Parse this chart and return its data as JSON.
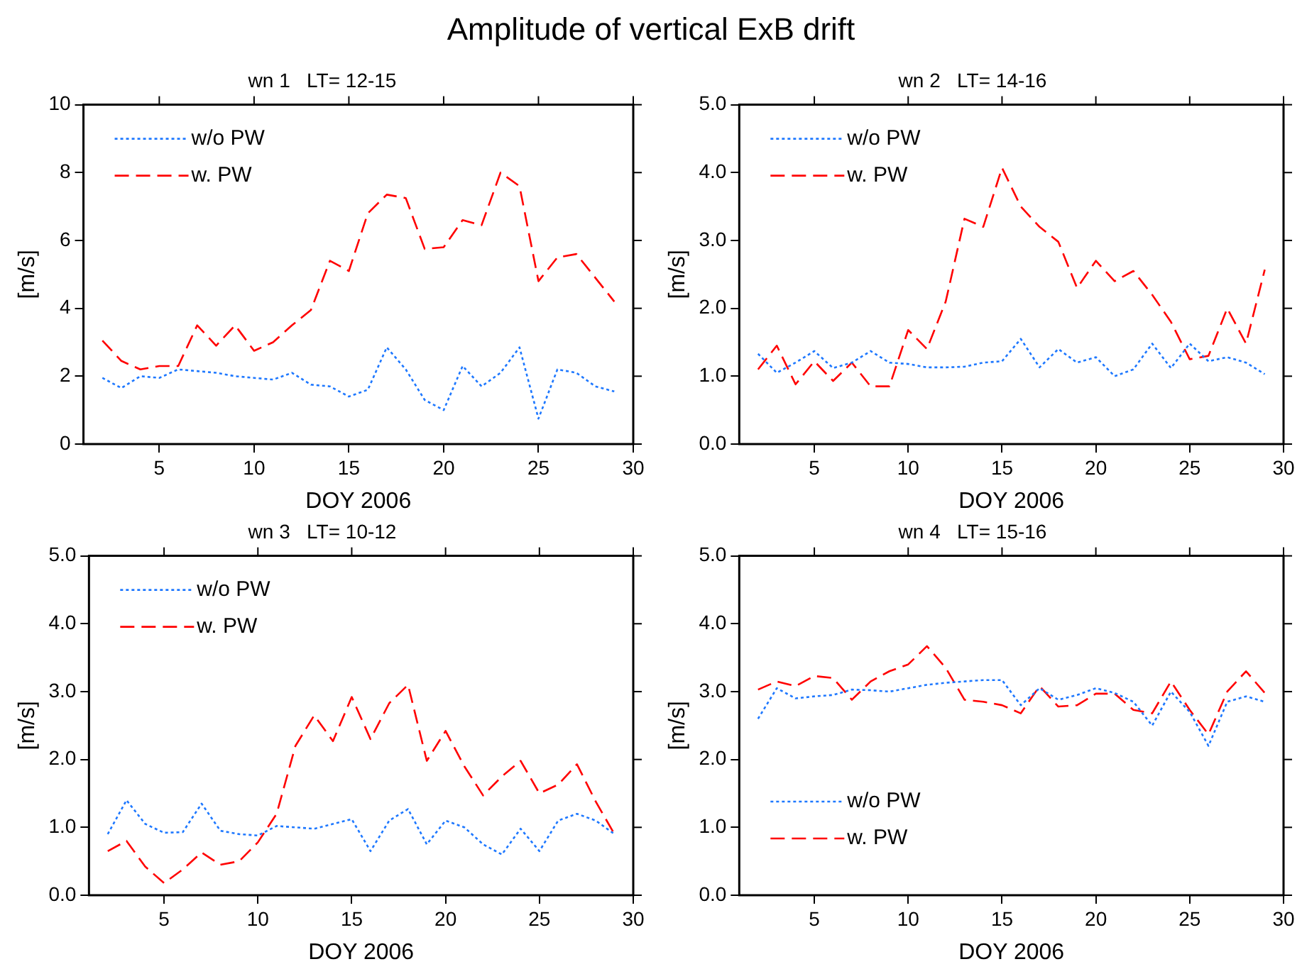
{
  "chart_data": [
    {
      "type": "other",
      "title": "Amplitude of vertical ExB drift"
    },
    {
      "type": "line",
      "title": "wn 1   LT= 12-15",
      "xlabel": "DOY 2006",
      "ylabel": "[m/s]",
      "x": [
        2,
        3,
        4,
        5,
        6,
        7,
        8,
        9,
        10,
        11,
        12,
        13,
        14,
        15,
        16,
        17,
        18,
        19,
        20,
        21,
        22,
        23,
        24,
        25,
        26,
        27,
        28,
        29
      ],
      "xlim": [
        1,
        30
      ],
      "xticks": [
        5,
        10,
        15,
        20,
        25,
        30
      ],
      "ylim": [
        0,
        10
      ],
      "yticks": [
        0,
        2,
        4,
        6,
        8,
        10
      ],
      "grid": false,
      "legend": "top left",
      "marker": "none",
      "series": [
        {
          "name": "w/o PW",
          "color": "#1e78ff",
          "line_style": "dotted",
          "values": [
            1.95,
            1.65,
            2.0,
            1.95,
            2.2,
            2.15,
            2.1,
            2.0,
            1.95,
            1.9,
            2.1,
            1.75,
            1.7,
            1.4,
            1.6,
            2.85,
            2.2,
            1.3,
            1.0,
            2.3,
            1.7,
            2.1,
            2.85,
            0.75,
            2.2,
            2.1,
            1.7,
            1.55
          ]
        },
        {
          "name": "w. PW",
          "color": "#ff0000",
          "line_style": "dashed",
          "values": [
            3.05,
            2.45,
            2.2,
            2.3,
            2.3,
            3.5,
            2.9,
            3.5,
            2.75,
            3.0,
            3.5,
            3.95,
            5.4,
            5.1,
            6.8,
            7.35,
            7.25,
            5.75,
            5.8,
            6.6,
            6.45,
            8.0,
            7.6,
            4.8,
            5.5,
            5.6,
            4.9,
            4.2
          ]
        }
      ]
    },
    {
      "type": "line",
      "title": "wn 2   LT= 14-16",
      "xlabel": "DOY 2006",
      "ylabel": "[m/s]",
      "x": [
        2,
        3,
        4,
        5,
        6,
        7,
        8,
        9,
        10,
        11,
        12,
        13,
        14,
        15,
        16,
        17,
        18,
        19,
        20,
        21,
        22,
        23,
        24,
        25,
        26,
        27,
        28,
        29
      ],
      "xlim": [
        1,
        30
      ],
      "xticks": [
        5,
        10,
        15,
        20,
        25,
        30
      ],
      "ylim": [
        0,
        5
      ],
      "yticks": [
        {
          "value": 0,
          "label": "0.0"
        },
        {
          "value": 1,
          "label": "1.0"
        },
        {
          "value": 2,
          "label": "2.0"
        },
        {
          "value": 3,
          "label": "3.0"
        },
        {
          "value": 4,
          "label": "4.0"
        },
        {
          "value": 5,
          "label": "5.0"
        }
      ],
      "grid": false,
      "legend": "top left",
      "marker": "none",
      "series": [
        {
          "name": "w/o PW",
          "color": "#1e78ff",
          "line_style": "dotted",
          "values": [
            1.33,
            1.05,
            1.2,
            1.37,
            1.12,
            1.2,
            1.37,
            1.2,
            1.18,
            1.13,
            1.13,
            1.14,
            1.2,
            1.22,
            1.55,
            1.13,
            1.4,
            1.2,
            1.28,
            1.0,
            1.1,
            1.48,
            1.12,
            1.48,
            1.22,
            1.28,
            1.2,
            1.03
          ]
        },
        {
          "name": "w. PW",
          "color": "#ff0000",
          "line_style": "dashed",
          "values": [
            1.1,
            1.45,
            0.88,
            1.22,
            0.93,
            1.2,
            0.85,
            0.85,
            1.68,
            1.4,
            2.1,
            3.32,
            3.2,
            4.07,
            3.5,
            3.2,
            2.98,
            2.3,
            2.7,
            2.4,
            2.55,
            2.2,
            1.8,
            1.25,
            1.3,
            2.0,
            1.48,
            2.57
          ]
        }
      ]
    },
    {
      "type": "line",
      "title": "wn 3   LT= 10-12",
      "xlabel": "DOY 2006",
      "ylabel": "[m/s]",
      "x": [
        2,
        3,
        4,
        5,
        6,
        7,
        8,
        9,
        10,
        11,
        12,
        13,
        14,
        15,
        16,
        17,
        18,
        19,
        20,
        21,
        22,
        23,
        24,
        25,
        26,
        27,
        28,
        29
      ],
      "xlim": [
        1,
        30
      ],
      "xticks": [
        5,
        10,
        15,
        20,
        25,
        30
      ],
      "ylim": [
        0,
        5
      ],
      "yticks": [
        {
          "value": 0,
          "label": "0.0"
        },
        {
          "value": 1,
          "label": "1.0"
        },
        {
          "value": 2,
          "label": "2.0"
        },
        {
          "value": 3,
          "label": "3.0"
        },
        {
          "value": 4,
          "label": "4.0"
        },
        {
          "value": 5,
          "label": "5.0"
        }
      ],
      "grid": false,
      "legend": "top left",
      "marker": "none",
      "series": [
        {
          "name": "w/o PW",
          "color": "#1e78ff",
          "line_style": "dotted",
          "values": [
            0.9,
            1.4,
            1.05,
            0.92,
            0.93,
            1.35,
            0.95,
            0.9,
            0.88,
            1.02,
            1.0,
            0.98,
            1.05,
            1.12,
            0.65,
            1.1,
            1.27,
            0.75,
            1.1,
            1.0,
            0.75,
            0.6,
            0.98,
            0.65,
            1.1,
            1.2,
            1.1,
            0.9
          ]
        },
        {
          "name": "w. PW",
          "color": "#ff0000",
          "line_style": "dashed",
          "values": [
            0.65,
            0.8,
            0.42,
            0.18,
            0.38,
            0.63,
            0.45,
            0.5,
            0.78,
            1.2,
            2.2,
            2.65,
            2.27,
            2.92,
            2.3,
            2.83,
            3.1,
            1.98,
            2.42,
            1.9,
            1.47,
            1.75,
            1.98,
            1.5,
            1.63,
            1.93,
            1.38,
            0.9
          ]
        }
      ]
    },
    {
      "type": "line",
      "title": "wn 4   LT= 15-16",
      "xlabel": "DOY 2006",
      "ylabel": "[m/s]",
      "x": [
        2,
        3,
        4,
        5,
        6,
        7,
        8,
        9,
        10,
        11,
        12,
        13,
        14,
        15,
        16,
        17,
        18,
        19,
        20,
        21,
        22,
        23,
        24,
        25,
        26,
        27,
        28,
        29
      ],
      "xlim": [
        1,
        30
      ],
      "xticks": [
        5,
        10,
        15,
        20,
        25,
        30
      ],
      "ylim": [
        0,
        5
      ],
      "yticks": [
        {
          "value": 0,
          "label": "0.0"
        },
        {
          "value": 1,
          "label": "1.0"
        },
        {
          "value": 2,
          "label": "2.0"
        },
        {
          "value": 3,
          "label": "3.0"
        },
        {
          "value": 4,
          "label": "4.0"
        },
        {
          "value": 5,
          "label": "5.0"
        }
      ],
      "grid": false,
      "legend": "bottom left",
      "marker": "none",
      "series": [
        {
          "name": "w/o PW",
          "color": "#1e78ff",
          "line_style": "dotted",
          "values": [
            2.6,
            3.05,
            2.9,
            2.93,
            2.95,
            3.03,
            3.02,
            3.0,
            3.05,
            3.1,
            3.13,
            3.15,
            3.17,
            3.17,
            2.8,
            3.05,
            2.88,
            2.95,
            3.05,
            2.98,
            2.85,
            2.5,
            3.0,
            2.7,
            2.2,
            2.85,
            2.93,
            2.85
          ]
        },
        {
          "name": "w. PW",
          "color": "#ff0000",
          "line_style": "dashed",
          "values": [
            3.03,
            3.15,
            3.08,
            3.23,
            3.2,
            2.88,
            3.15,
            3.3,
            3.4,
            3.67,
            3.35,
            2.88,
            2.85,
            2.8,
            2.68,
            3.08,
            2.78,
            2.8,
            2.97,
            2.97,
            2.73,
            2.68,
            3.15,
            2.73,
            2.37,
            3.0,
            3.3,
            2.98
          ]
        }
      ]
    }
  ]
}
